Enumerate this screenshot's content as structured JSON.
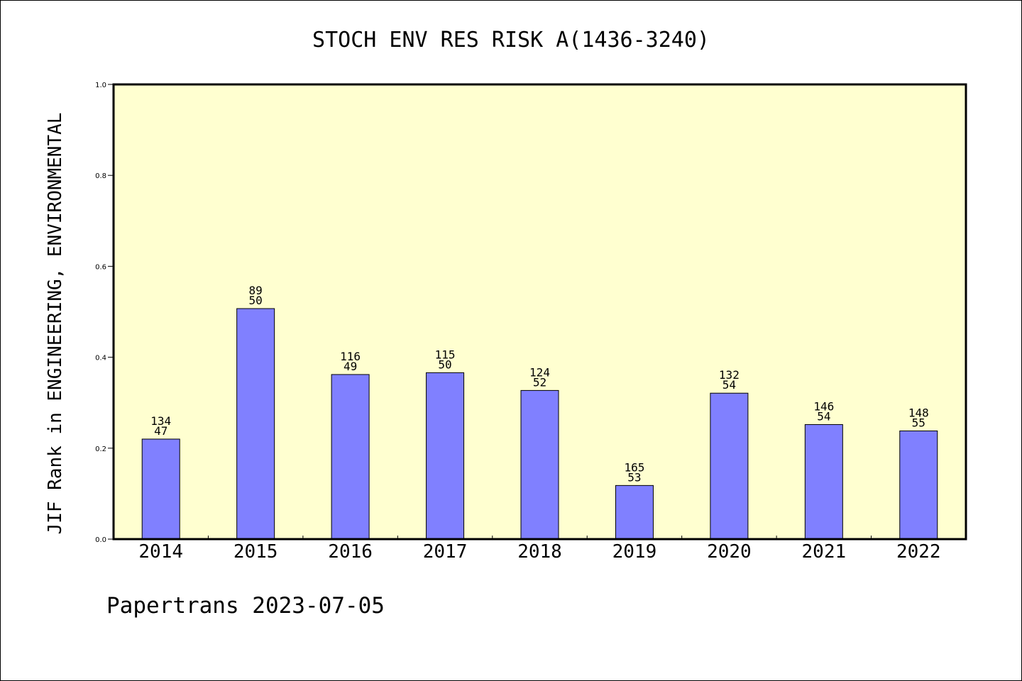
{
  "chart_data": {
    "type": "bar",
    "title": "STOCH ENV RES RISK A(1436-3240)",
    "xlabel": "",
    "ylabel": "JIF Rank in ENGINEERING, ENVIRONMENTAL",
    "ylim": [
      0,
      1.0
    ],
    "yticks": [
      "0.0",
      "0.2",
      "0.4",
      "0.6",
      "0.8",
      "1.0"
    ],
    "grid": false,
    "categories": [
      "2014",
      "2015",
      "2016",
      "2017",
      "2018",
      "2019",
      "2020",
      "2021",
      "2022"
    ],
    "values": [
      0.22,
      0.507,
      0.362,
      0.366,
      0.327,
      0.118,
      0.321,
      0.252,
      0.238
    ],
    "labels_top": [
      "134",
      "89",
      "116",
      "115",
      "124",
      "165",
      "132",
      "146",
      "148"
    ],
    "labels_bottom": [
      "47",
      "50",
      "49",
      "50",
      "52",
      "53",
      "54",
      "54",
      "55"
    ],
    "colors": {
      "bar": "#8080ff",
      "plot_background": "#ffffd0",
      "axis": "#000000"
    }
  },
  "footer": "Papertrans 2023-07-05"
}
